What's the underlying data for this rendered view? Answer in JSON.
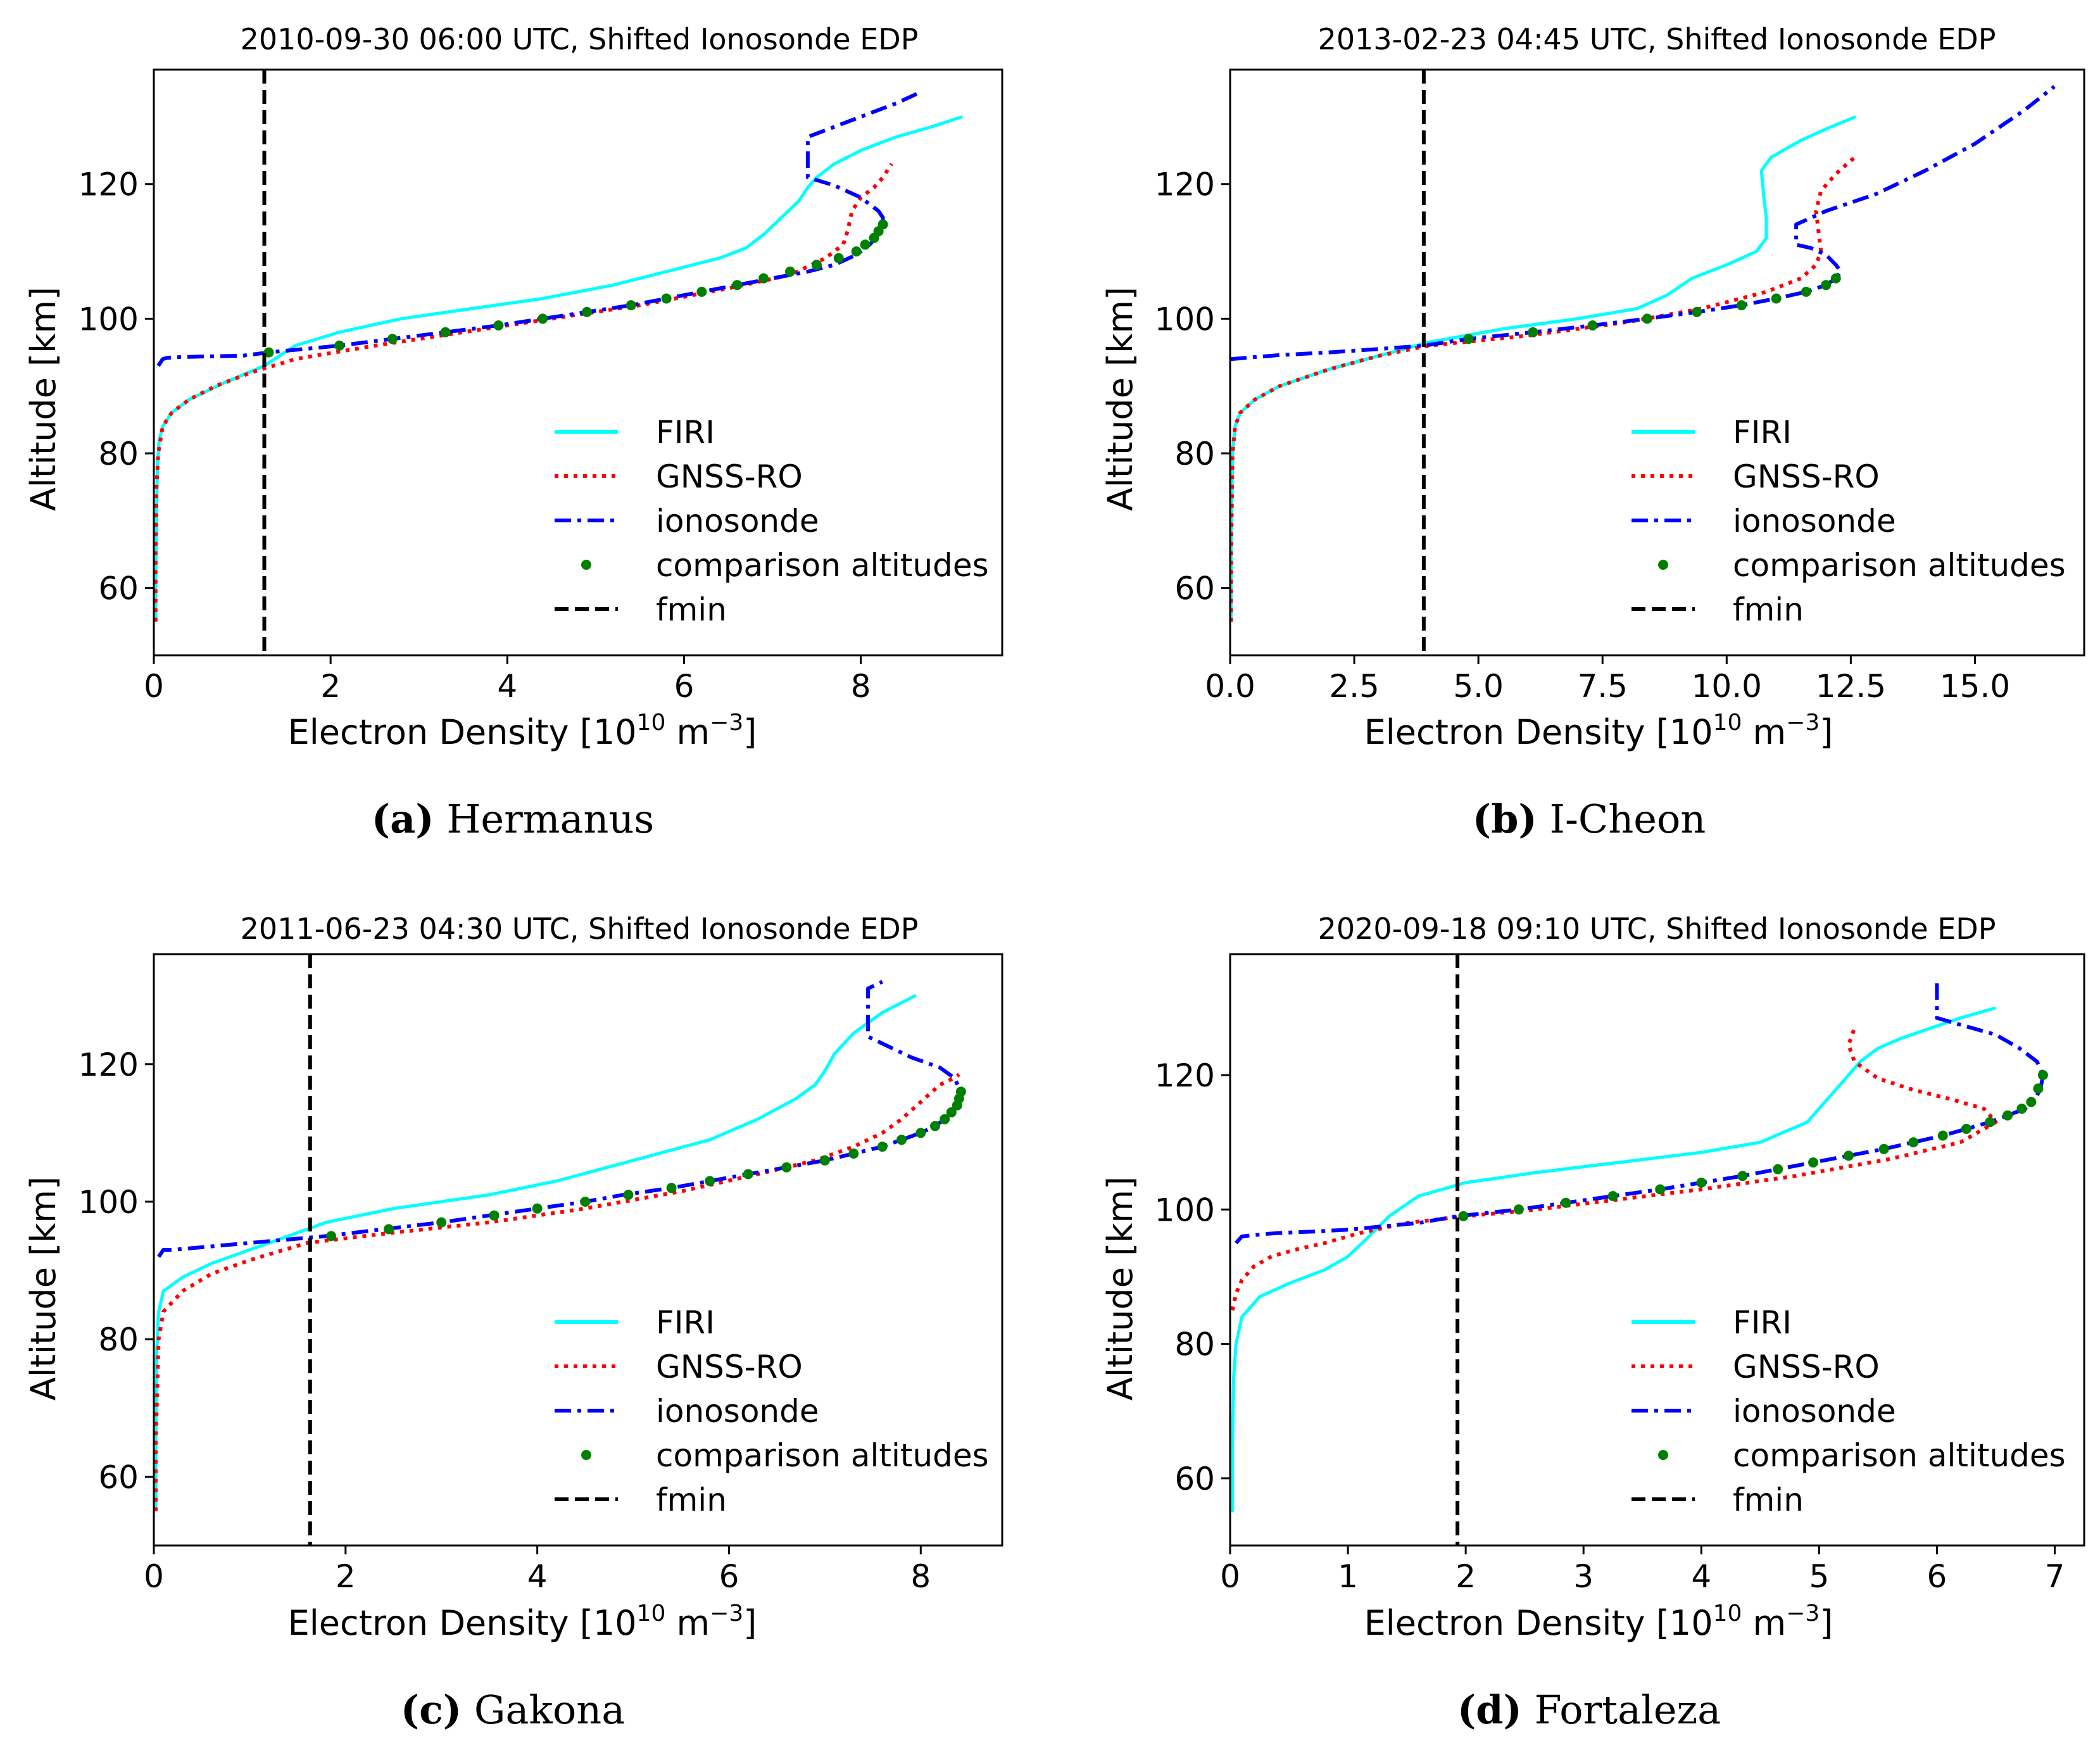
{
  "figure": {
    "legend_labels": {
      "firi": "FIRI",
      "gnss": "GNSS-RO",
      "iono": "ionosonde",
      "comp": "comparison altitudes",
      "fmin": "fmin"
    },
    "colors": {
      "firi": "#00ffff",
      "gnss": "#ff0000",
      "iono": "#0000ff",
      "comp": "#008000",
      "fmin": "#000000"
    }
  },
  "chart_data": [
    {
      "type": "line",
      "title": "2010-09-30 06:00 UTC, Shifted Ionosonde EDP",
      "caption_letter": "(a)",
      "caption_text": "Hermanus",
      "xlabel": "Electron Density [10",
      "xlabel_exp": "10",
      "xlabel_unit": " m",
      "xlabel_unit_exp": "−3",
      "xlabel_end": "]",
      "ylabel": "Altitude [km]",
      "xlim": [
        0,
        9.6
      ],
      "ylim": [
        50,
        137
      ],
      "xticks": [
        0,
        2,
        4,
        6,
        8
      ],
      "xtick_labels": [
        "0",
        "2",
        "4",
        "6",
        "8"
      ],
      "yticks": [
        60,
        80,
        100,
        120
      ],
      "ytick_labels": [
        "60",
        "80",
        "100",
        "120"
      ],
      "fmin": 1.25,
      "legend_position": "lower-right",
      "series": [
        {
          "name": "FIRI",
          "x": [
            0.02,
            0.02,
            0.03,
            0.04,
            0.06,
            0.1,
            0.2,
            0.4,
            0.8,
            1.25,
            1.6,
            2.1,
            2.8,
            3.6,
            4.4,
            5.2,
            5.8,
            6.4,
            6.7,
            6.9,
            7.1,
            7.3,
            7.4,
            7.5,
            7.7,
            8.0,
            8.4,
            8.8,
            9.15
          ],
          "y": [
            55,
            60,
            70,
            78,
            82,
            84,
            86,
            88,
            90.5,
            93,
            96,
            98,
            100,
            101.5,
            103,
            105,
            107,
            109,
            110.5,
            112.5,
            115,
            117.5,
            119.5,
            121,
            123,
            125,
            127,
            128.5,
            130
          ]
        },
        {
          "name": "GNSS-RO",
          "x": [
            0.02,
            0.02,
            0.03,
            0.05,
            0.1,
            0.2,
            0.4,
            0.7,
            1.1,
            1.6,
            2.5,
            3.5,
            4.5,
            5.5,
            6.5,
            7.2,
            7.6,
            7.8,
            7.85,
            7.9,
            8.0,
            8.15,
            8.25,
            8.3,
            8.35
          ],
          "y": [
            55,
            65,
            75,
            80,
            84,
            86,
            88,
            90,
            92,
            94,
            96,
            98,
            100,
            102,
            104.5,
            106.5,
            109,
            111,
            113,
            116,
            118,
            119.5,
            121,
            122,
            123
          ]
        },
        {
          "name": "ionosonde",
          "x": [
            0.05,
            0.1,
            0.15,
            0.3,
            0.6,
            1.0,
            1.3,
            2.1,
            2.7,
            3.3,
            3.9,
            4.4,
            4.9,
            5.4,
            5.8,
            6.2,
            6.6,
            7.0,
            7.4,
            7.7,
            7.95,
            8.1,
            8.2,
            8.25,
            8.25,
            8.2,
            8.0,
            7.7,
            7.4,
            7.4,
            7.4,
            7.6,
            8.0,
            8.4,
            8.65
          ],
          "y": [
            93,
            94,
            94.2,
            94.3,
            94.4,
            94.5,
            95,
            96,
            97,
            98,
            99,
            100,
            101,
            102,
            103,
            104,
            105,
            106,
            107,
            108,
            109.5,
            111,
            112.5,
            114,
            115,
            116,
            118,
            119.8,
            121,
            124,
            127,
            128,
            130,
            132,
            133.5
          ]
        },
        {
          "name": "comparison altitudes",
          "x": [
            1.3,
            2.1,
            2.7,
            3.3,
            3.9,
            4.4,
            4.9,
            5.4,
            5.8,
            6.2,
            6.6,
            6.9,
            7.2,
            7.5,
            7.75,
            7.95,
            8.05,
            8.15,
            8.2,
            8.25
          ],
          "y": [
            95,
            96,
            97,
            98,
            99,
            100,
            101,
            102,
            103,
            104,
            105,
            106,
            107,
            108,
            109,
            110,
            111,
            112,
            113,
            114
          ]
        }
      ]
    },
    {
      "type": "line",
      "title": "2013-02-23 04:45 UTC, Shifted Ionosonde EDP",
      "caption_letter": "(b)",
      "caption_text": "I-Cheon",
      "xlabel": "Electron Density [10",
      "xlabel_exp": "10",
      "xlabel_unit": " m",
      "xlabel_unit_exp": "−3",
      "xlabel_end": "]",
      "ylabel": "Altitude [km]",
      "xlim": [
        0,
        17.2
      ],
      "ylim": [
        50,
        137
      ],
      "xticks": [
        0,
        2.5,
        5,
        7.5,
        10,
        12.5,
        15
      ],
      "xtick_labels": [
        "0.0",
        "2.5",
        "5.0",
        "7.5",
        "10.0",
        "12.5",
        "15.0"
      ],
      "yticks": [
        60,
        80,
        100,
        120
      ],
      "ytick_labels": [
        "60",
        "80",
        "100",
        "120"
      ],
      "fmin": 3.9,
      "legend_position": "lower-right",
      "series": [
        {
          "name": "FIRI",
          "x": [
            0.02,
            0.02,
            0.05,
            0.1,
            0.2,
            0.5,
            1.0,
            2.0,
            3.0,
            4.0,
            5.5,
            7.0,
            8.2,
            8.8,
            9.3,
            10.0,
            10.6,
            10.8,
            10.8,
            10.75,
            10.7,
            10.9,
            11.5,
            12.1,
            12.6
          ],
          "y": [
            55,
            65,
            80,
            84,
            86,
            88,
            90,
            92.5,
            94.5,
            96.5,
            98.5,
            100,
            101.5,
            103.5,
            106,
            108,
            110,
            112,
            115,
            118,
            122,
            124,
            126.5,
            128.5,
            130
          ]
        },
        {
          "name": "GNSS-RO",
          "x": [
            0.02,
            0.02,
            0.05,
            0.1,
            0.2,
            0.5,
            1.0,
            2.0,
            3.0,
            4.0,
            6.0,
            8.0,
            9.5,
            10.8,
            11.5,
            11.8,
            11.9,
            11.85,
            11.8,
            11.9,
            12.2,
            12.5,
            12.6
          ],
          "y": [
            55,
            65,
            80,
            84,
            86,
            88,
            90,
            92.5,
            94.5,
            96,
            97.5,
            99.5,
            101.5,
            104,
            106,
            108,
            110,
            113,
            116,
            119,
            121.5,
            123.5,
            124
          ]
        },
        {
          "name": "ionosonde",
          "x": [
            0.0,
            0.5,
            1.0,
            2.0,
            3.0,
            3.9,
            4.8,
            6.1,
            7.3,
            8.4,
            9.4,
            10.3,
            11.0,
            11.6,
            12.0,
            12.2,
            12.3,
            12.2,
            12.0,
            11.7,
            11.4,
            11.4,
            11.4,
            12.0,
            13.0,
            14.0,
            15.0,
            16.0,
            16.6
          ],
          "y": [
            94,
            94.3,
            94.6,
            95,
            95.5,
            96,
            97,
            98,
            99,
            100,
            101,
            102,
            103,
            104,
            105,
            106,
            107,
            108,
            109.5,
            110.5,
            111,
            113,
            114,
            116,
            118.5,
            122,
            126,
            131,
            134.5
          ]
        },
        {
          "name": "comparison altitudes",
          "x": [
            4.8,
            6.1,
            7.3,
            8.4,
            9.4,
            10.3,
            11.0,
            11.6,
            12.0,
            12.2
          ],
          "y": [
            97,
            98,
            99,
            100,
            101,
            102,
            103,
            104,
            105,
            106
          ]
        }
      ]
    },
    {
      "type": "line",
      "title": "2011-06-23 04:30 UTC, Shifted Ionosonde EDP",
      "caption_letter": "(c)",
      "caption_text": "Gakona",
      "xlabel": "Electron Density [10",
      "xlabel_exp": "10",
      "xlabel_unit": " m",
      "xlabel_unit_exp": "−3",
      "xlabel_end": "]",
      "ylabel": "Altitude [km]",
      "xlim": [
        0,
        8.85
      ],
      "ylim": [
        50,
        136
      ],
      "xticks": [
        0,
        2,
        4,
        6,
        8
      ],
      "xtick_labels": [
        "0",
        "2",
        "4",
        "6",
        "8"
      ],
      "yticks": [
        60,
        80,
        100,
        120
      ],
      "ytick_labels": [
        "60",
        "80",
        "100",
        "120"
      ],
      "fmin": 1.63,
      "legend_position": "lower-right",
      "series": [
        {
          "name": "FIRI",
          "x": [
            0.02,
            0.02,
            0.03,
            0.05,
            0.1,
            0.3,
            0.6,
            1.0,
            1.4,
            1.8,
            2.5,
            3.5,
            4.2,
            5.0,
            5.8,
            6.3,
            6.7,
            6.9,
            7.0,
            7.1,
            7.3,
            7.6,
            7.95
          ],
          "y": [
            55,
            65,
            78,
            84,
            87,
            89,
            91,
            93,
            95,
            97,
            99,
            101,
            103,
            106,
            109,
            112,
            115,
            117,
            119,
            121.5,
            124.5,
            127.5,
            130
          ]
        },
        {
          "name": "GNSS-RO",
          "x": [
            0.02,
            0.02,
            0.05,
            0.1,
            0.3,
            0.6,
            1.0,
            1.6,
            2.5,
            3.5,
            4.5,
            5.5,
            6.3,
            6.9,
            7.3,
            7.6,
            7.8,
            8.0,
            8.2,
            8.35,
            8.4
          ],
          "y": [
            55,
            65,
            80,
            84,
            87,
            89.5,
            91.5,
            94,
            95.5,
            97,
            99,
            101.5,
            104,
            106,
            108,
            110,
            112,
            114.5,
            117,
            118,
            118.5
          ]
        },
        {
          "name": "ionosonde",
          "x": [
            0.05,
            0.1,
            0.2,
            0.6,
            1.0,
            1.8,
            2.4,
            3.0,
            3.5,
            4.0,
            4.5,
            4.9,
            5.4,
            5.8,
            6.2,
            6.6,
            7.0,
            7.3,
            7.6,
            7.8,
            8.0,
            8.15,
            8.25,
            8.35,
            8.4,
            8.42,
            8.35,
            8.2,
            7.9,
            7.6,
            7.45,
            7.45,
            7.45,
            7.6
          ],
          "y": [
            92,
            93,
            93,
            93.5,
            94,
            95,
            96,
            97,
            98,
            99,
            100,
            101,
            102,
            103,
            104,
            105,
            106,
            107,
            108,
            109,
            110,
            111,
            112,
            113,
            114,
            116,
            118,
            119.5,
            121,
            123,
            124,
            128,
            131,
            132
          ]
        },
        {
          "name": "comparison altitudes",
          "x": [
            1.85,
            2.45,
            3.0,
            3.55,
            4.0,
            4.5,
            4.95,
            5.4,
            5.8,
            6.2,
            6.6,
            7.0,
            7.3,
            7.6,
            7.8,
            8.0,
            8.15,
            8.25,
            8.32,
            8.38,
            8.4,
            8.42
          ],
          "y": [
            95,
            96,
            97,
            98,
            99,
            100,
            101,
            102,
            103,
            104,
            105,
            106,
            107,
            108,
            109,
            110,
            111,
            112,
            113,
            114,
            115,
            116
          ]
        }
      ]
    },
    {
      "type": "line",
      "title": "2020-09-18 09:10 UTC, Shifted Ionosonde EDP",
      "caption_letter": "(d)",
      "caption_text": "Fortaleza",
      "xlabel": "Electron Density [10",
      "xlabel_exp": "10",
      "xlabel_unit": " m",
      "xlabel_unit_exp": "−3",
      "xlabel_end": "]",
      "ylabel": "Altitude [km]",
      "xlim": [
        0,
        7.25
      ],
      "ylim": [
        50,
        138
      ],
      "xticks": [
        0,
        1,
        2,
        3,
        4,
        5,
        6,
        7
      ],
      "xtick_labels": [
        "0",
        "1",
        "2",
        "3",
        "4",
        "5",
        "6",
        "7"
      ],
      "yticks": [
        60,
        80,
        100,
        120
      ],
      "ytick_labels": [
        "60",
        "80",
        "100",
        "120"
      ],
      "fmin": 1.93,
      "legend_position": "lower-right",
      "series": [
        {
          "name": "FIRI",
          "x": [
            0.02,
            0.02,
            0.03,
            0.05,
            0.1,
            0.25,
            0.5,
            0.8,
            1.0,
            1.15,
            1.35,
            1.6,
            2.0,
            2.6,
            3.3,
            4.0,
            4.5,
            4.9,
            5.1,
            5.25,
            5.35,
            5.5,
            5.7,
            5.95,
            6.2,
            6.5
          ],
          "y": [
            55,
            65,
            75,
            80,
            84,
            87,
            89,
            91,
            93,
            95.5,
            99,
            102,
            104,
            105.5,
            107,
            108.5,
            110,
            113,
            117,
            120,
            122,
            124,
            125.5,
            127,
            128.5,
            130
          ]
        },
        {
          "name": "GNSS-RO",
          "x": [
            0.02,
            0.05,
            0.1,
            0.2,
            0.35,
            0.55,
            0.8,
            1.1,
            1.5,
            2.0,
            2.6,
            3.3,
            4.0,
            4.8,
            5.6,
            6.2,
            6.5,
            6.4,
            6.1,
            5.8,
            5.5,
            5.3,
            5.25,
            5.3
          ],
          "y": [
            85,
            87.5,
            89.5,
            91.5,
            93,
            94,
            95,
            96.5,
            98,
            99,
            100,
            101.5,
            103,
            105,
            107.5,
            110,
            113,
            115,
            116.5,
            117.8,
            119.5,
            122,
            124.5,
            127
          ]
        },
        {
          "name": "ionosonde",
          "x": [
            0.05,
            0.1,
            0.2,
            0.4,
            0.7,
            1.0,
            1.3,
            1.6,
            1.93,
            2.45,
            2.85,
            3.25,
            3.65,
            4.0,
            4.35,
            4.65,
            4.95,
            5.25,
            5.55,
            5.8,
            6.05,
            6.25,
            6.45,
            6.6,
            6.75,
            6.82,
            6.88,
            6.9,
            6.85,
            6.7,
            6.5,
            6.3,
            6.0,
            6.0,
            6.0
          ],
          "y": [
            95,
            96,
            96.2,
            96.5,
            96.7,
            97,
            97.5,
            98,
            99,
            100,
            101,
            102,
            103,
            104,
            105,
            106,
            107,
            108,
            109,
            110,
            111,
            112,
            113,
            114,
            115,
            116,
            118,
            120,
            122,
            124,
            126,
            127,
            128.5,
            131,
            134
          ]
        },
        {
          "name": "comparison altitudes",
          "x": [
            1.98,
            2.45,
            2.85,
            3.25,
            3.65,
            4.0,
            4.35,
            4.65,
            4.95,
            5.25,
            5.55,
            5.8,
            6.05,
            6.25,
            6.45,
            6.6,
            6.72,
            6.8,
            6.86,
            6.9
          ],
          "y": [
            99,
            100,
            101,
            102,
            103,
            104,
            105,
            106,
            107,
            108,
            109,
            110,
            111,
            112,
            113,
            114,
            115,
            116,
            118,
            120
          ]
        }
      ]
    }
  ]
}
